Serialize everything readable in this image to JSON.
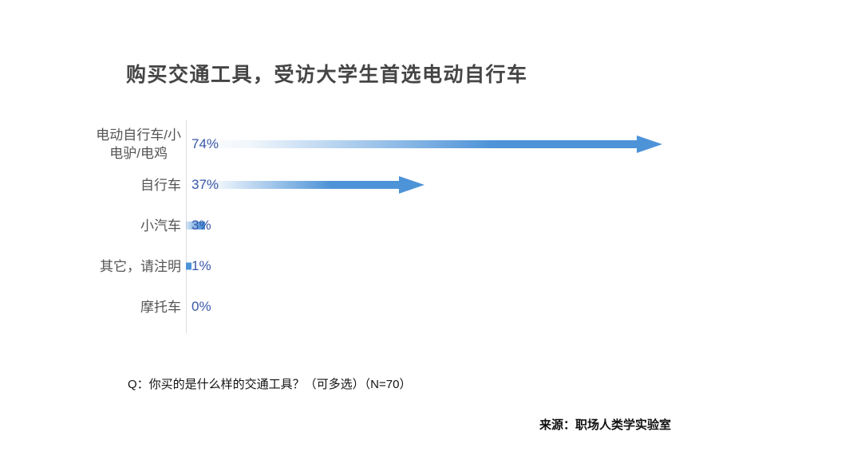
{
  "page": {
    "footnote": "Q：你买的是什么样的交通工具？（可多选）（N=70）",
    "source": "来源：职场人类学实验室"
  },
  "chart_data": {
    "type": "bar",
    "orientation": "horizontal",
    "title": "购买交通工具，受访大学生首选电动自行车",
    "categories": [
      "电动自行车/小电驴/电鸡",
      "自行车",
      "小汽车",
      "其它，请注明",
      "摩托车"
    ],
    "category_display": [
      "电动自行车/小\n电驴/电鸡",
      "自行车",
      "小汽车",
      "其它，请注明",
      "摩托车"
    ],
    "values": [
      74,
      37,
      3,
      1,
      0
    ],
    "value_labels": [
      "74%",
      "37%",
      "3%",
      "1%",
      "0%"
    ],
    "unit": "%",
    "sample_note": "N=70",
    "xlim": [
      0,
      100
    ],
    "grid": false,
    "legend": false,
    "bar_style": "gradient-arrow",
    "colors": {
      "bar": "#4d93d8",
      "value_label": "#3a57a8",
      "category_label": "#555555",
      "axis_line": "#dcdcdc",
      "title": "#454545",
      "footnote_text": "#111111",
      "background": "#ffffff"
    }
  }
}
